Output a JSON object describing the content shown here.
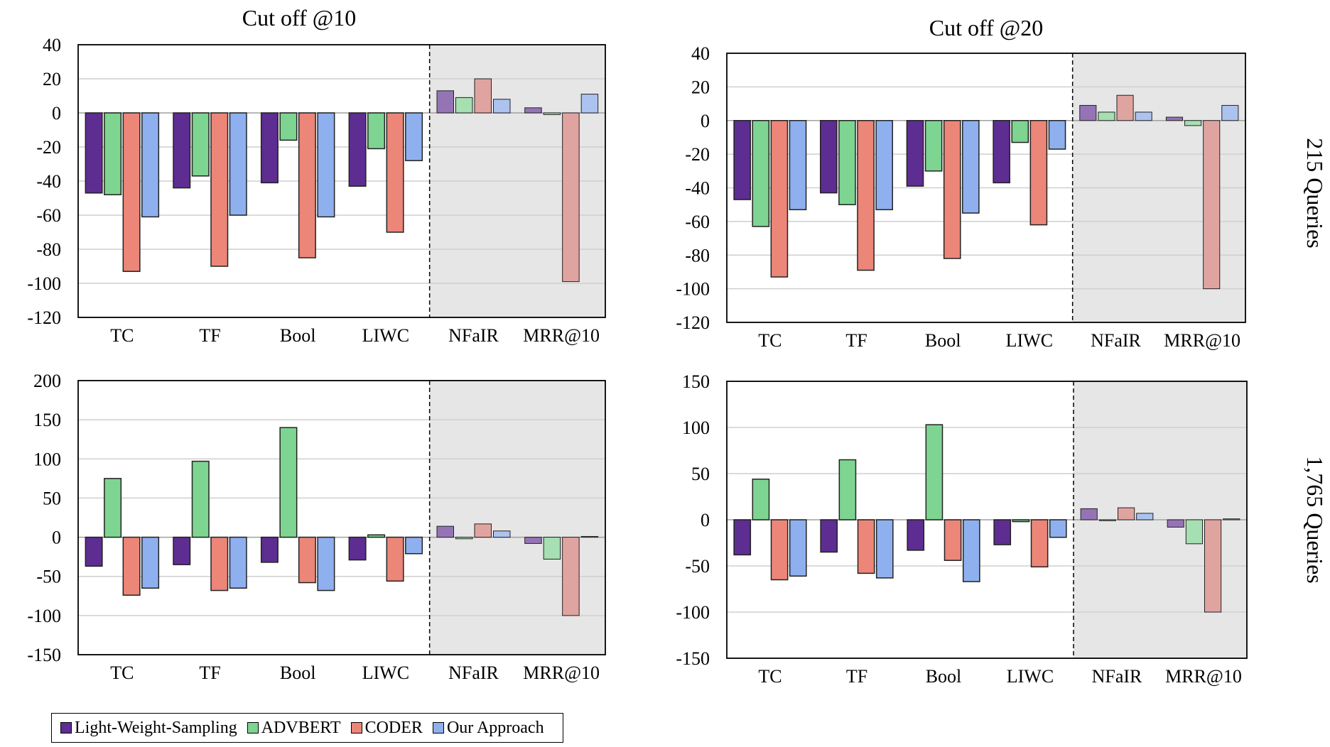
{
  "colors": {
    "Light-Weight-Sampling": "#5e2d91",
    "ADVBERT": "#7ed491",
    "CODER": "#ec8678",
    "Our Approach": "#8fb0ef",
    "shaded_bg": "#e6e6e6"
  },
  "row_labels": [
    "215 Queries",
    "1,765 Queries"
  ],
  "legend": [
    "Light-Weight-Sampling",
    "ADVBERT",
    "CODER",
    "Our Approach"
  ],
  "chart_data": [
    {
      "type": "bar",
      "title": "Cut off @10",
      "categories": [
        "TC",
        "TF",
        "Bool",
        "LIWC",
        "NFaIR",
        "MRR@10"
      ],
      "shaded_categories": [
        "NFaIR",
        "MRR@10"
      ],
      "ylim": [
        -120,
        40
      ],
      "yticks": [
        40,
        20,
        0,
        -20,
        -40,
        -60,
        -80,
        -100,
        -120
      ],
      "ytick_labels": [
        "40",
        "20",
        "0",
        "-20",
        "-40",
        "-60",
        "-80",
        "-100",
        "-120"
      ],
      "series": [
        {
          "name": "Light-Weight-Sampling",
          "values": [
            -47,
            -44,
            -41,
            -43,
            13,
            3
          ]
        },
        {
          "name": "ADVBERT",
          "values": [
            -48,
            -37,
            -16,
            -21,
            9,
            -1
          ]
        },
        {
          "name": "CODER",
          "values": [
            -93,
            -90,
            -85,
            -70,
            20,
            -99
          ]
        },
        {
          "name": "Our Approach",
          "values": [
            -61,
            -60,
            -61,
            -28,
            8,
            11
          ]
        }
      ]
    },
    {
      "type": "bar",
      "title": "Cut off @20",
      "categories": [
        "TC",
        "TF",
        "Bool",
        "LIWC",
        "NFaIR",
        "MRR@10"
      ],
      "shaded_categories": [
        "NFaIR",
        "MRR@10"
      ],
      "ylim": [
        -120,
        40
      ],
      "yticks": [
        40,
        20,
        0,
        -20,
        -40,
        -60,
        -80,
        -100,
        -120
      ],
      "ytick_labels": [
        "40",
        "20",
        "0",
        "-20",
        "-40",
        "-60",
        "-80",
        "-100",
        "-120"
      ],
      "series": [
        {
          "name": "Light-Weight-Sampling",
          "values": [
            -47,
            -43,
            -39,
            -37,
            9,
            2
          ]
        },
        {
          "name": "ADVBERT",
          "values": [
            -63,
            -50,
            -30,
            -13,
            5,
            -3
          ]
        },
        {
          "name": "CODER",
          "values": [
            -93,
            -89,
            -82,
            -62,
            15,
            -100
          ]
        },
        {
          "name": "Our Approach",
          "values": [
            -53,
            -53,
            -55,
            -17,
            5,
            9
          ]
        }
      ]
    },
    {
      "type": "bar",
      "title": "",
      "categories": [
        "TC",
        "TF",
        "Bool",
        "LIWC",
        "NFaIR",
        "MRR@10"
      ],
      "shaded_categories": [
        "NFaIR",
        "MRR@10"
      ],
      "ylim": [
        -150,
        200
      ],
      "yticks": [
        200,
        150,
        100,
        50,
        0,
        -50,
        -100,
        -150
      ],
      "ytick_labels": [
        "200",
        "150",
        "100",
        "50",
        "0",
        "-50",
        "-100",
        "-150"
      ],
      "series": [
        {
          "name": "Light-Weight-Sampling",
          "values": [
            -37,
            -35,
            -32,
            -29,
            14,
            -8
          ]
        },
        {
          "name": "ADVBERT",
          "values": [
            75,
            97,
            140,
            3,
            -2,
            -28
          ]
        },
        {
          "name": "CODER",
          "values": [
            -74,
            -68,
            -58,
            -56,
            17,
            -100
          ]
        },
        {
          "name": "Our Approach",
          "values": [
            -65,
            -65,
            -68,
            -21,
            8,
            1
          ]
        }
      ]
    },
    {
      "type": "bar",
      "title": "",
      "categories": [
        "TC",
        "TF",
        "Bool",
        "LIWC",
        "NFaIR",
        "MRR@10"
      ],
      "shaded_categories": [
        "NFaIR",
        "MRR@10"
      ],
      "ylim": [
        -150,
        150
      ],
      "yticks": [
        150,
        100,
        50,
        0,
        -50,
        -100,
        -150
      ],
      "ytick_labels": [
        "150",
        "100",
        "50",
        "0",
        "-50",
        "-100",
        "-150"
      ],
      "series": [
        {
          "name": "Light-Weight-Sampling",
          "values": [
            -38,
            -35,
            -33,
            -27,
            12,
            -8
          ]
        },
        {
          "name": "ADVBERT",
          "values": [
            44,
            65,
            103,
            -2,
            -1,
            -26
          ]
        },
        {
          "name": "CODER",
          "values": [
            -65,
            -58,
            -44,
            -51,
            13,
            -100
          ]
        },
        {
          "name": "Our Approach",
          "values": [
            -61,
            -63,
            -67,
            -19,
            7,
            1
          ]
        }
      ]
    }
  ]
}
